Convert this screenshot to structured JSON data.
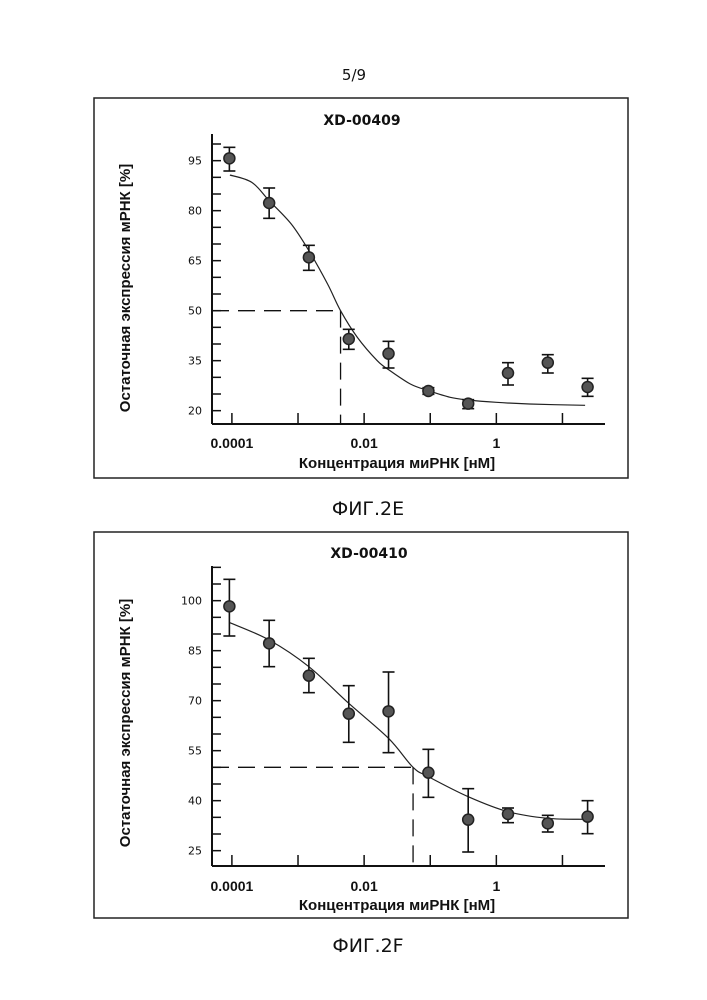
{
  "page": {
    "page_number": "5/9"
  },
  "chart_data": [
    {
      "type": "scatter",
      "title": "XD-00409",
      "figure_label": "ФИГ.2E",
      "xlabel": "Концентрация миРНК [нМ]",
      "ylabel": "Остаточная экспрессия мРНК [%]",
      "xscale": "log",
      "xlim": [
        5e-05,
        44
      ],
      "ylim": [
        16,
        103
      ],
      "x_major_ticks": [
        0.0001,
        0.001,
        0.01,
        0.1,
        1,
        10
      ],
      "x_tick_labels": [
        {
          "value": 0.0001,
          "label": "0.0001"
        },
        {
          "value": 0.01,
          "label": "0.01"
        },
        {
          "value": 1,
          "label": "1"
        }
      ],
      "y_minor_step": 5,
      "y_tick_labels": [
        {
          "value": 20,
          "label": "20"
        },
        {
          "value": 35,
          "label": "35"
        },
        {
          "value": 50,
          "label": "50"
        },
        {
          "value": 65,
          "label": "65"
        },
        {
          "value": 80,
          "label": "80"
        },
        {
          "value": 95,
          "label": "95"
        }
      ],
      "grid": false,
      "x": [
        9.16e-05,
        0.000366,
        0.00146,
        0.00586,
        0.0234,
        0.0938,
        0.375,
        1.5,
        6,
        24
      ],
      "y": [
        95.7,
        82.3,
        66.0,
        41.5,
        37.1,
        25.9,
        22.1,
        31.3,
        34.4,
        27.1
      ],
      "y_err_upper": [
        99.0,
        86.8,
        69.6,
        44.4,
        40.8,
        26.9,
        23.3,
        34.4,
        36.8,
        29.7
      ],
      "y_err_lower": [
        91.9,
        77.7,
        62.1,
        38.4,
        32.8,
        24.9,
        20.6,
        27.7,
        31.3,
        24.3
      ],
      "fit_curve": {
        "x": [
          9.33e-05,
          0.0002,
          0.000366,
          0.00079,
          0.00146,
          0.0028,
          0.0044,
          0.0079,
          0.0158,
          0.0234,
          0.05,
          0.0938,
          0.2,
          0.375,
          1,
          3.16,
          22
        ],
        "y": [
          90.7,
          88.5,
          83,
          76,
          68,
          58,
          50,
          42,
          35,
          32.3,
          28,
          26,
          24,
          23.2,
          22.5,
          22,
          21.6
        ]
      },
      "ic50_guide": {
        "y": 50,
        "x": 0.0044
      }
    },
    {
      "type": "scatter",
      "title": "XD-00410",
      "figure_label": "ФИГ.2F",
      "xlabel": "Концентрация миРНК [нМ]",
      "ylabel": "Остаточная экспрессия мРНК [%]",
      "xscale": "log",
      "xlim": [
        5e-05,
        44
      ],
      "ylim": [
        20.4,
        110.4
      ],
      "x_major_ticks": [
        0.0001,
        0.001,
        0.01,
        0.1,
        1,
        10
      ],
      "x_tick_labels": [
        {
          "value": 0.0001,
          "label": "0.0001"
        },
        {
          "value": 0.01,
          "label": "0.01"
        },
        {
          "value": 1,
          "label": "1"
        }
      ],
      "y_minor_step": 5,
      "y_tick_labels": [
        {
          "value": 25,
          "label": "25"
        },
        {
          "value": 40,
          "label": "40"
        },
        {
          "value": 55,
          "label": "55"
        },
        {
          "value": 70,
          "label": "70"
        },
        {
          "value": 85,
          "label": "85"
        },
        {
          "value": 100,
          "label": "100"
        }
      ],
      "grid": false,
      "x": [
        9.16e-05,
        0.000366,
        0.00146,
        0.00586,
        0.0234,
        0.0938,
        0.375,
        1.5,
        6,
        24
      ],
      "y": [
        98.3,
        87.2,
        77.5,
        66.1,
        66.8,
        48.4,
        34.3,
        36.0,
        33.2,
        35.2
      ],
      "y_err_upper": [
        106.4,
        94.1,
        82.7,
        74.5,
        78.6,
        55.4,
        43.6,
        37.8,
        35.6,
        40.0
      ],
      "y_err_lower": [
        89.4,
        80.2,
        72.4,
        57.5,
        54.4,
        41.0,
        24.6,
        33.4,
        30.6,
        30.1
      ],
      "fit_curve": {
        "x": [
          9.33e-05,
          0.000366,
          0.00146,
          0.00586,
          0.0234,
          0.055,
          0.0938,
          0.375,
          1.5,
          6,
          22
        ],
        "y": [
          93.4,
          88.2,
          80.2,
          69.2,
          58.7,
          50,
          47.2,
          41.2,
          36.7,
          34.7,
          34.4
        ]
      },
      "ic50_guide": {
        "y": 50,
        "x": 0.055
      }
    }
  ]
}
